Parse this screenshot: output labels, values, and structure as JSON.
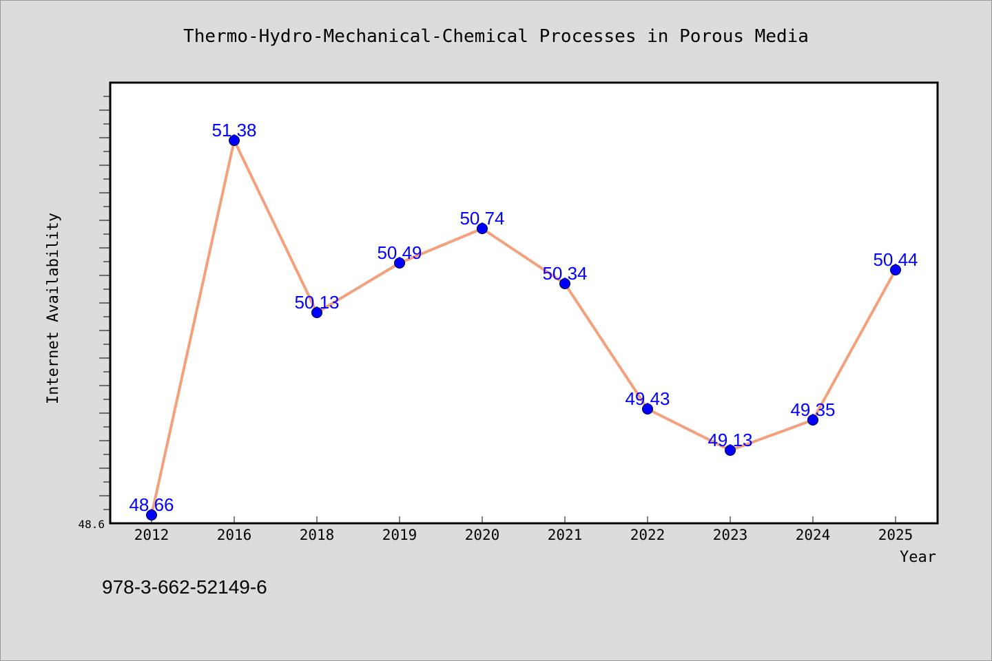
{
  "colors": {
    "background": "#dcdcdc",
    "plot_bg": "#ffffff",
    "line": "#f4a07c",
    "marker": "#0000ff",
    "data_label": "#0000ff",
    "text": "#000000"
  },
  "caption": "978-3-662-52149-6",
  "chart_data": {
    "type": "line",
    "title": "Thermo-Hydro-Mechanical-Chemical Processes in Porous Media",
    "xlabel": "Year",
    "ylabel": "Internet Availability",
    "categories": [
      "2012",
      "2016",
      "2018",
      "2019",
      "2020",
      "2021",
      "2022",
      "2023",
      "2024",
      "2025"
    ],
    "series": [
      {
        "values": [
          48.66,
          51.38,
          50.13,
          50.49,
          50.74,
          50.34,
          49.43,
          49.13,
          49.35,
          50.44
        ],
        "labels": [
          "48.66",
          "51.38",
          "50.13",
          "50.49",
          "50.74",
          "50.34",
          "49.43",
          "49.13",
          "49.35",
          "50.44"
        ]
      }
    ],
    "ylim": [
      48.6,
      51.8
    ],
    "yticks": [
      "48.6"
    ],
    "grid": false,
    "legend": "none"
  }
}
